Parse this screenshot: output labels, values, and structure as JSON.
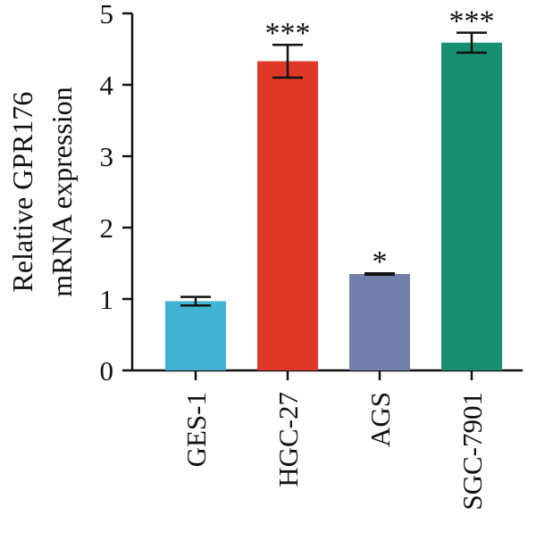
{
  "chart_data": {
    "type": "bar",
    "title": "",
    "xlabel": "",
    "ylabel_lines": [
      "Relative GPR176",
      "mRNA expression"
    ],
    "categories": [
      "GES-1",
      "HGC-27",
      "AGS",
      "SGC-7901"
    ],
    "values": [
      0.97,
      4.33,
      1.35,
      4.59
    ],
    "errors": [
      0.06,
      0.23,
      0.01,
      0.14
    ],
    "significance": [
      "",
      "***",
      "*",
      "***"
    ],
    "colors": [
      "#42b4d3",
      "#df3829",
      "#717fab",
      "#178f72"
    ],
    "ylim": [
      0,
      5
    ],
    "yticks": [
      "0",
      "1",
      "2",
      "3",
      "4",
      "5"
    ],
    "grid": false,
    "legend": "none"
  }
}
